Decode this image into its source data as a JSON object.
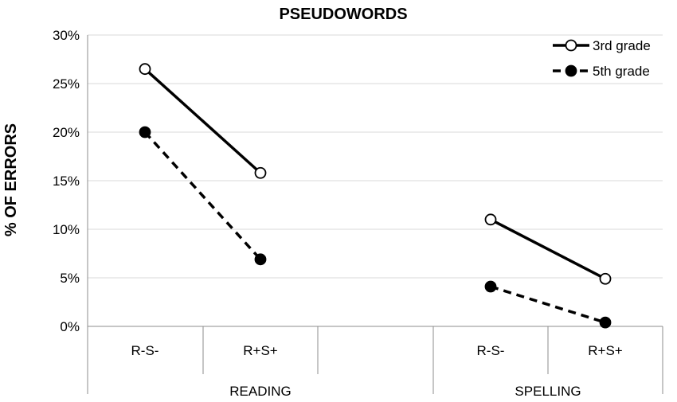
{
  "chart_data": {
    "type": "line",
    "title": "PSEUDOWORDS",
    "ylabel": "% OF ERRORS",
    "xlabel": "",
    "ylim": [
      0,
      30
    ],
    "yticks": [
      "0%",
      "5%",
      "10%",
      "15%",
      "20%",
      "25%",
      "30%"
    ],
    "grid": true,
    "legend_position": "top-right",
    "groups": [
      {
        "label": "READING",
        "categories": [
          "R-S-",
          "R+S+"
        ]
      },
      {
        "label": "SPELLING",
        "categories": [
          "R-S-",
          "R+S+"
        ]
      }
    ],
    "series": [
      {
        "name": "3rd grade",
        "marker": "open-circle",
        "line_style": "solid",
        "color": "#000000",
        "segments": [
          {
            "group": "READING",
            "values": [
              26.5,
              15.8
            ]
          },
          {
            "group": "SPELLING",
            "values": [
              11.0,
              4.9
            ]
          }
        ]
      },
      {
        "name": "5th grade",
        "marker": "filled-circle",
        "line_style": "dashed",
        "color": "#000000",
        "segments": [
          {
            "group": "READING",
            "values": [
              20.0,
              6.9
            ]
          },
          {
            "group": "SPELLING",
            "values": [
              4.1,
              0.4
            ]
          }
        ]
      }
    ]
  }
}
